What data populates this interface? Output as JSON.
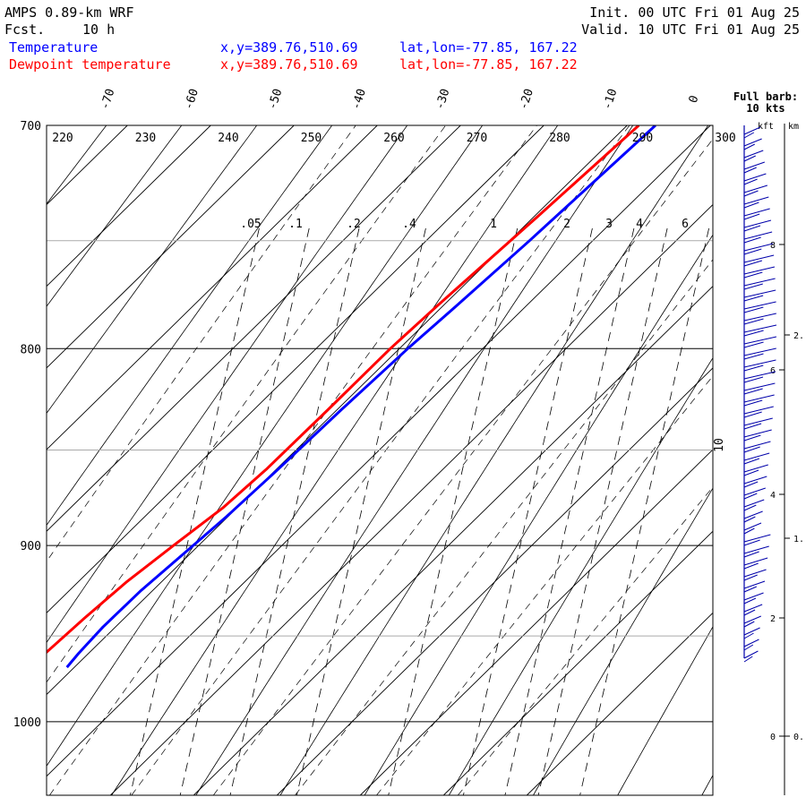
{
  "header": {
    "model": "AMPS 0.89-km WRF",
    "fcst_label": "Fcst.",
    "fcst_value": "10 h",
    "init": "Init. 00 UTC Fri 01 Aug 25",
    "valid": "Valid. 10 UTC Fri 01 Aug 25"
  },
  "legend": [
    {
      "name": "Temperature",
      "xy": "x,y=389.76,510.69",
      "latlon": "lat,lon=-77.85, 167.22",
      "color": "#0000ff"
    },
    {
      "name": "Dewpoint temperature",
      "xy": "x,y=389.76,510.69",
      "latlon": "lat,lon=-77.85, 167.22",
      "color": "#ff0000"
    }
  ],
  "wind_panel": {
    "title": "Full barb:",
    "subtitle": "10 kts",
    "kft_label": "kft",
    "km_label": "km",
    "kft_ticks": [
      "8",
      "6",
      "4",
      "2",
      "0"
    ],
    "km_ticks": [
      "2.",
      "1.",
      "0."
    ],
    "km_ticks_bottom": "0."
  },
  "chart_data": {
    "type": "line",
    "pressure_labels": [
      "700",
      "800",
      "900",
      "1000"
    ],
    "pressure_range": [
      700,
      1045
    ],
    "isotherm_labels": [
      "-70",
      "-60",
      "-50",
      "-40",
      "-30",
      "-20",
      "-10",
      "0"
    ],
    "isotherm_edge_label": "10",
    "theta_labels": [
      "220",
      "230",
      "240",
      "250",
      "260",
      "270",
      "280",
      "290",
      "300"
    ],
    "mixing_ratio_labels": [
      ".05",
      ".1",
      ".2",
      ".4",
      "1",
      "2",
      "3",
      "4",
      "6"
    ],
    "colors": {
      "temperature": "#0000ff",
      "dewpoint": "#ff0000"
    },
    "series": [
      {
        "name": "Temperature",
        "points": [
          {
            "p": 700,
            "t": -26.6
          },
          {
            "p": 720,
            "t": -27.0
          },
          {
            "p": 750,
            "t": -27.6
          },
          {
            "p": 780,
            "t": -28.4
          },
          {
            "p": 800,
            "t": -29.0
          },
          {
            "p": 830,
            "t": -29.5
          },
          {
            "p": 860,
            "t": -29.8
          },
          {
            "p": 885,
            "t": -30.2
          },
          {
            "p": 905,
            "t": -30.8
          },
          {
            "p": 925,
            "t": -31.4
          },
          {
            "p": 945,
            "t": -31.5
          },
          {
            "p": 960,
            "t": -31.2
          },
          {
            "p": 968,
            "t": -30.9
          }
        ]
      },
      {
        "name": "Dewpoint temperature",
        "points": [
          {
            "p": 700,
            "t": -28.6
          },
          {
            "p": 740,
            "t": -29.6
          },
          {
            "p": 780,
            "t": -30.7
          },
          {
            "p": 800,
            "t": -31.1
          },
          {
            "p": 830,
            "t": -31.1
          },
          {
            "p": 860,
            "t": -31.2
          },
          {
            "p": 880,
            "t": -31.7
          },
          {
            "p": 900,
            "t": -33.0
          },
          {
            "p": 920,
            "t": -34.2
          },
          {
            "p": 940,
            "t": -34.8
          },
          {
            "p": 960,
            "t": -35.2
          },
          {
            "p": 968,
            "t": -35.2
          }
        ]
      }
    ]
  }
}
